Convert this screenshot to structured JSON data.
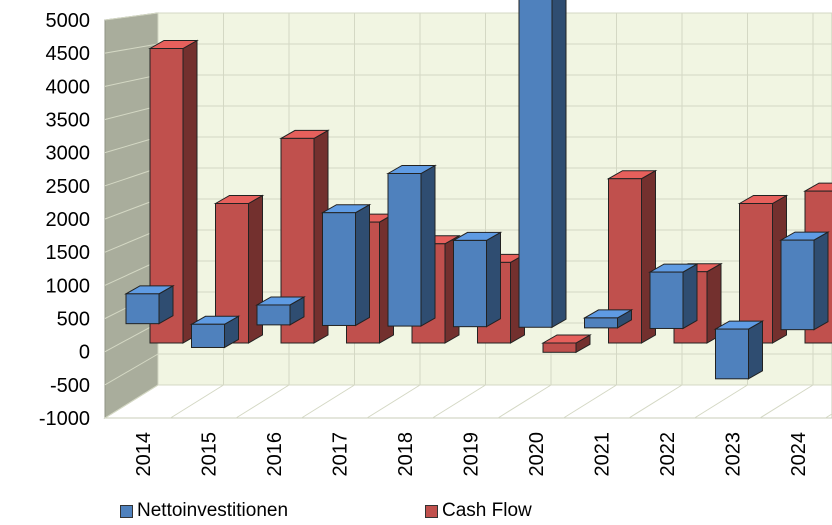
{
  "chart_data": {
    "type": "bar",
    "categories": [
      "2014",
      "2015",
      "2016",
      "2017",
      "2018",
      "2019",
      "2020",
      "2021",
      "2022",
      "2023",
      "2024"
    ],
    "series": [
      {
        "name": "Nettoinvestitionen",
        "color": "#4f81bd",
        "values": [
          450,
          -350,
          300,
          1700,
          2300,
          1300,
          5000,
          150,
          850,
          -750,
          1350
        ]
      },
      {
        "name": "Cash Flow",
        "color": "#c0504d",
        "values": [
          4750,
          2250,
          3300,
          1950,
          1600,
          1300,
          -150,
          2650,
          1150,
          2250,
          2450
        ]
      }
    ],
    "ylim": [
      -1000,
      5000
    ],
    "yticks": [
      5000,
      4500,
      4000,
      3500,
      3000,
      2500,
      2000,
      1500,
      1000,
      500,
      0,
      -500,
      -1000
    ],
    "grid": true,
    "legend": "bottom"
  }
}
